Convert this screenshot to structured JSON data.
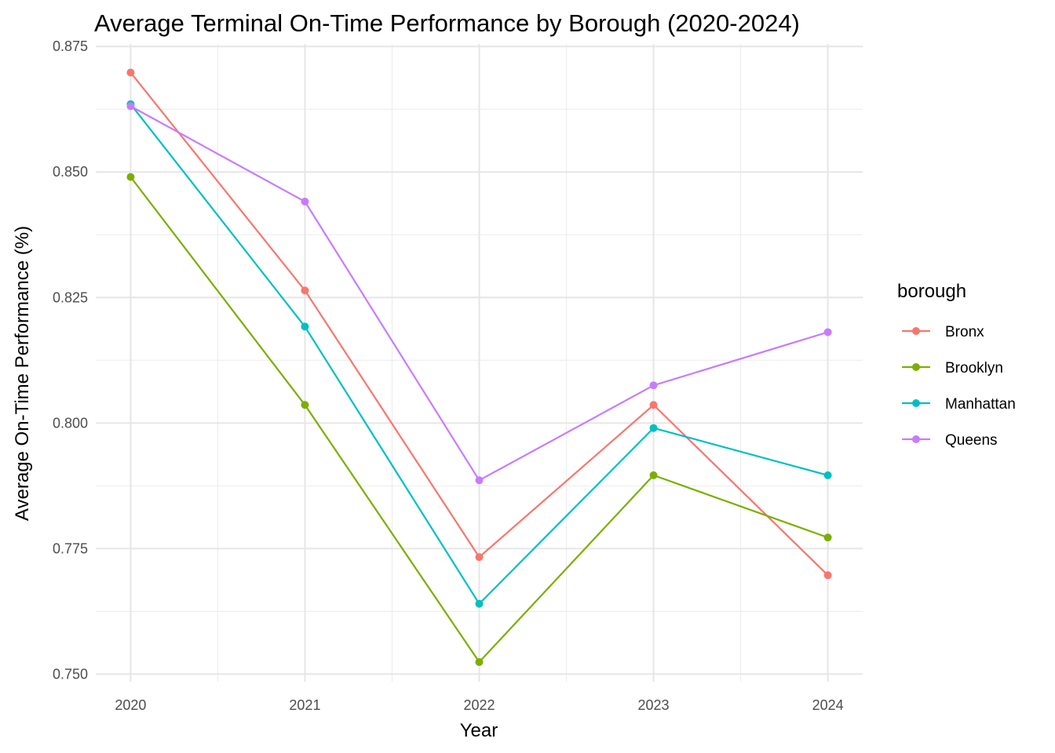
{
  "chart_data": {
    "type": "line",
    "title": "Average Terminal On-Time Performance by Borough (2020-2024)",
    "xlabel": "Year",
    "ylabel": "Average On-Time Performance (%)",
    "x": [
      2020,
      2021,
      2022,
      2023,
      2024
    ],
    "x_tick_labels": [
      "2020",
      "2021",
      "2022",
      "2023",
      "2024"
    ],
    "y_ticks": [
      0.75,
      0.775,
      0.8,
      0.825,
      0.85,
      0.875
    ],
    "y_tick_labels": [
      "0.750",
      "0.775",
      "0.800",
      "0.825",
      "0.850",
      "0.875"
    ],
    "xlim": [
      2019.8,
      2024.2
    ],
    "ylim": [
      0.7485,
      0.8755
    ],
    "grid": true,
    "legend": {
      "title": "borough",
      "position": "right"
    },
    "series": [
      {
        "name": "Bronx",
        "color": "#F8766D",
        "values": [
          0.8698,
          0.8264,
          0.7733,
          0.8036,
          0.7697
        ]
      },
      {
        "name": "Brooklyn",
        "color": "#7CAE00",
        "values": [
          0.849,
          0.8036,
          0.7524,
          0.7896,
          0.7772
        ]
      },
      {
        "name": "Manhattan",
        "color": "#00BFC4",
        "values": [
          0.8635,
          0.8192,
          0.764,
          0.799,
          0.7896
        ]
      },
      {
        "name": "Queens",
        "color": "#C77CFF",
        "values": [
          0.8631,
          0.8441,
          0.7886,
          0.8075,
          0.8181
        ]
      }
    ]
  }
}
